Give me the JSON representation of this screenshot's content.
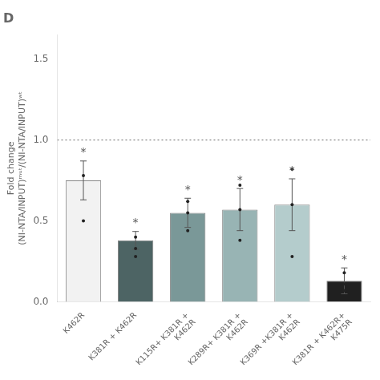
{
  "chart_data": {
    "type": "bar",
    "title": "D",
    "ylabel": "Fold change\n(NI‑NTA/INPUT)ᵐᵘᵗ/(NI‑NTA/INPUT)ʷᵗ",
    "categories": [
      "K462R",
      "K381R + K462R",
      "K115R+ K381R +\nK462R",
      "K289R+ K381R +\nK462R",
      "K369R +K381R +\nK462R",
      "K381R + K462R+\nK475R"
    ],
    "values": [
      0.75,
      0.38,
      0.55,
      0.57,
      0.6,
      0.13
    ],
    "errors": [
      0.12,
      0.055,
      0.09,
      0.13,
      0.16,
      0.08
    ],
    "points": [
      [
        0.5,
        0.78
      ],
      [
        0.28,
        0.33,
        0.4
      ],
      [
        0.44,
        0.55,
        0.62
      ],
      [
        0.38,
        0.57,
        0.72
      ],
      [
        0.28,
        0.6,
        0.82
      ],
      [
        0.07,
        0.11,
        0.18
      ]
    ],
    "annotations": [
      "*",
      "*",
      "*",
      "*",
      "*",
      "*"
    ],
    "reference_line": 1.0,
    "colors": [
      "#f2f2f2",
      "#4d6464",
      "#7a9898",
      "#98b4b4",
      "#b4cccc",
      "#202020"
    ],
    "edge_color": "#888888",
    "ylim": [
      0,
      1.65
    ],
    "yticks": [
      {
        "value": 0.0,
        "label": "0.0"
      },
      {
        "value": 0.5,
        "label": "0.5"
      },
      {
        "value": 1.0,
        "label": "1.0"
      },
      {
        "value": 1.5,
        "label": "1.5"
      }
    ],
    "grid": false
  }
}
